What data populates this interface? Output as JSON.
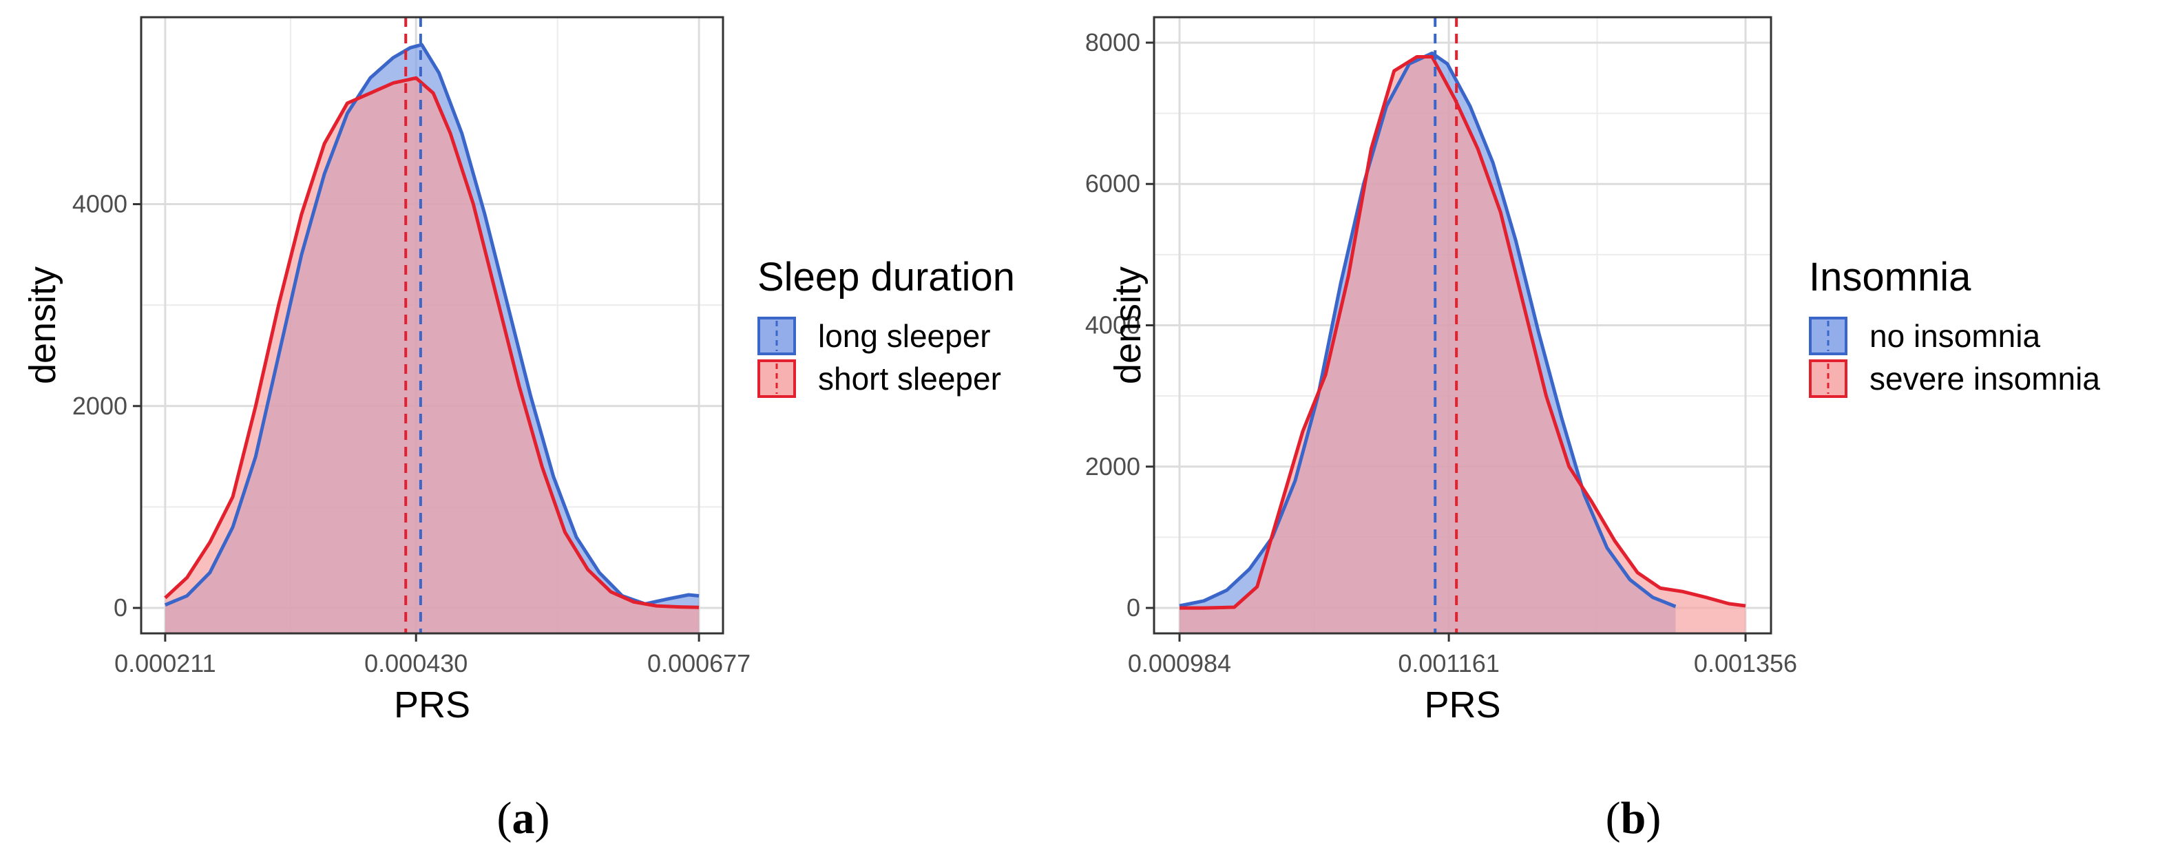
{
  "chart_data": [
    {
      "type": "area",
      "caption_letter": "a",
      "xlabel": "PRS",
      "ylabel": "density",
      "xlim": [
        0.000211,
        0.000677
      ],
      "ylim": [
        0,
        5600
      ],
      "x_ticks": [
        0.000211,
        0.00043,
        0.000677
      ],
      "x_tick_labels": [
        "0.000211",
        "0.000430",
        "0.000677"
      ],
      "y_ticks": [
        0,
        2000,
        4000
      ],
      "y_tick_labels": [
        "0",
        "2000",
        "4000"
      ],
      "grid": true,
      "legend": {
        "title": "Sleep duration",
        "position": "right"
      },
      "series": [
        {
          "name": "long sleeper",
          "color": "#3b66c9",
          "fill": "#7f9fe6",
          "mean": 0.000434,
          "x": [
            0.000211,
            0.00023,
            0.00025,
            0.00027,
            0.00029,
            0.00031,
            0.00033,
            0.00035,
            0.00037,
            0.00039,
            0.00041,
            0.000425,
            0.000435,
            0.00045,
            0.00047,
            0.00049,
            0.00051,
            0.00053,
            0.00055,
            0.00057,
            0.00059,
            0.00061,
            0.00063,
            0.00065,
            0.000668,
            0.000677
          ],
          "y": [
            30,
            120,
            350,
            800,
            1500,
            2500,
            3500,
            4300,
            4900,
            5250,
            5450,
            5550,
            5580,
            5300,
            4700,
            3900,
            3000,
            2100,
            1300,
            700,
            350,
            120,
            40,
            90,
            130,
            120
          ]
        },
        {
          "name": "short sleeper",
          "color": "#e3202e",
          "fill": "#f7a3a3",
          "mean": 0.000421,
          "x": [
            0.000211,
            0.00023,
            0.00025,
            0.00027,
            0.00029,
            0.00031,
            0.00033,
            0.00035,
            0.00037,
            0.00039,
            0.00041,
            0.00043,
            0.000445,
            0.00046,
            0.00048,
            0.0005,
            0.00052,
            0.00054,
            0.00056,
            0.00058,
            0.0006,
            0.00062,
            0.00064,
            0.00066,
            0.000677
          ],
          "y": [
            100,
            300,
            650,
            1100,
            2000,
            3000,
            3900,
            4600,
            5000,
            5100,
            5200,
            5250,
            5100,
            4700,
            4000,
            3100,
            2200,
            1400,
            750,
            380,
            160,
            60,
            20,
            10,
            5
          ]
        }
      ]
    },
    {
      "type": "area",
      "caption_letter": "b",
      "xlabel": "PRS",
      "ylabel": "density",
      "xlim": [
        0.000984,
        0.001356
      ],
      "ylim": [
        0,
        8000
      ],
      "x_ticks": [
        0.000984,
        0.001161,
        0.001356
      ],
      "x_tick_labels": [
        "0.000984",
        "0.001161",
        "0.001356"
      ],
      "y_ticks": [
        0,
        2000,
        4000,
        6000,
        8000
      ],
      "y_tick_labels": [
        "0",
        "2000",
        "4000",
        "6000",
        "8000"
      ],
      "grid": true,
      "legend": {
        "title": "Insomnia",
        "position": "right"
      },
      "series": [
        {
          "name": "no insomnia",
          "color": "#3b66c9",
          "fill": "#7f9fe6",
          "mean": 0.001152,
          "x": [
            0.000984,
            0.001,
            0.001015,
            0.00103,
            0.001045,
            0.00106,
            0.001075,
            0.00109,
            0.001105,
            0.00112,
            0.001135,
            0.00115,
            0.00116,
            0.001175,
            0.00119,
            0.001205,
            0.00122,
            0.001235,
            0.00125,
            0.001265,
            0.00128,
            0.001295,
            0.00131
          ],
          "y": [
            30,
            100,
            250,
            550,
            1000,
            1800,
            3000,
            4600,
            6000,
            7100,
            7700,
            7850,
            7700,
            7100,
            6300,
            5200,
            3900,
            2700,
            1600,
            850,
            400,
            150,
            20
          ]
        },
        {
          "name": "severe insomnia",
          "color": "#e3202e",
          "fill": "#f7a3a3",
          "mean": 0.001166,
          "x": [
            0.000984,
            0.001,
            0.00102,
            0.001035,
            0.00105,
            0.001065,
            0.00108,
            0.001095,
            0.00111,
            0.001125,
            0.00114,
            0.00115,
            0.001165,
            0.00118,
            0.001195,
            0.00121,
            0.001225,
            0.00124,
            0.001255,
            0.00127,
            0.001285,
            0.0013,
            0.001315,
            0.00133,
            0.001345,
            0.001356
          ],
          "y": [
            0,
            0,
            10,
            300,
            1400,
            2500,
            3300,
            4700,
            6500,
            7600,
            7800,
            7800,
            7200,
            6500,
            5600,
            4300,
            3000,
            2000,
            1500,
            950,
            500,
            280,
            230,
            150,
            60,
            30
          ]
        }
      ]
    }
  ]
}
